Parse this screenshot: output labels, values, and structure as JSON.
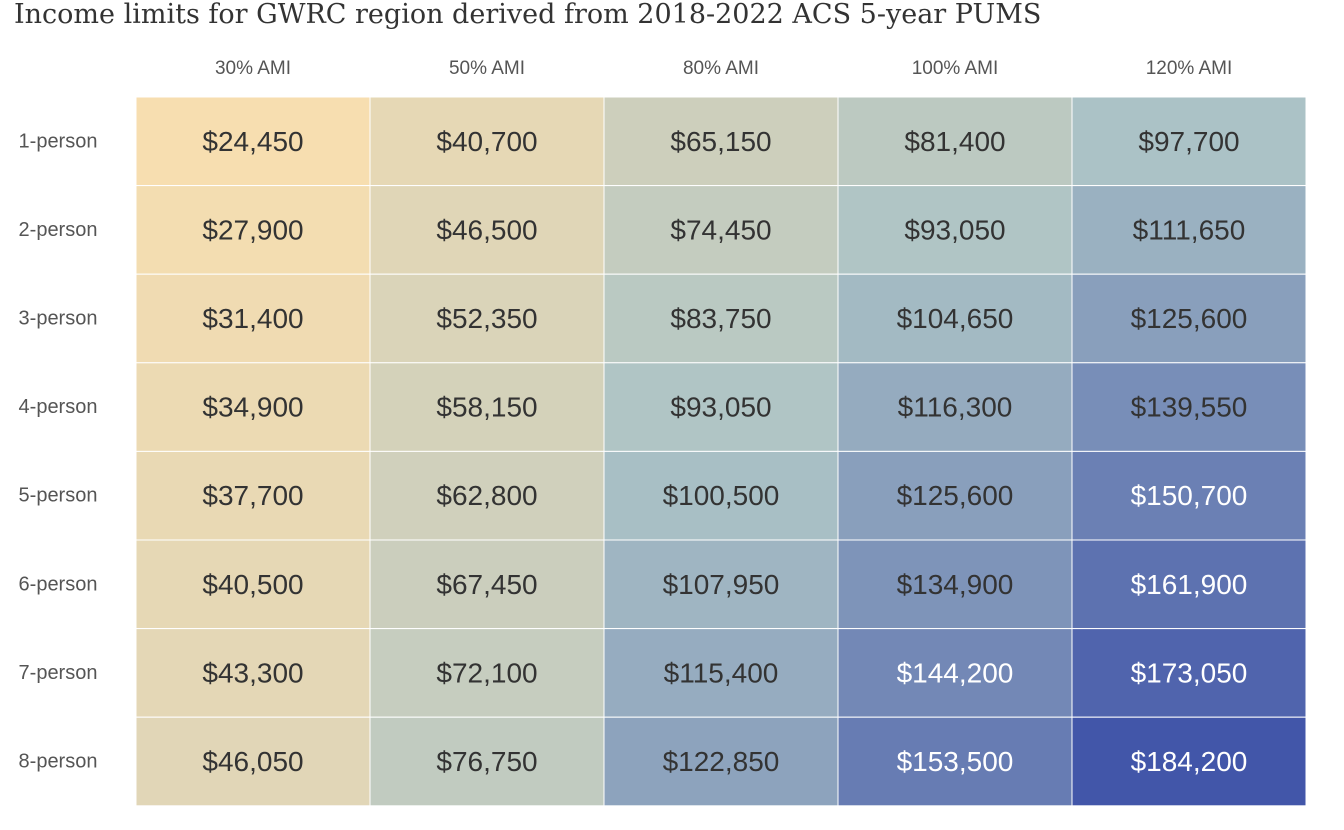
{
  "chart_data": {
    "type": "heatmap",
    "title": "Income limits for GWRC region derived from 2018-2022 ACS 5-year PUMS",
    "columns": [
      "30% AMI",
      "50% AMI",
      "80% AMI",
      "100% AMI",
      "120% AMI"
    ],
    "rows": [
      "1-person",
      "2-person",
      "3-person",
      "4-person",
      "5-person",
      "6-person",
      "7-person",
      "8-person"
    ],
    "values": [
      [
        24450,
        40700,
        65150,
        81400,
        97700
      ],
      [
        27900,
        46500,
        74450,
        93050,
        111650
      ],
      [
        31400,
        52350,
        83750,
        104650,
        125600
      ],
      [
        34900,
        58150,
        93050,
        116300,
        139550
      ],
      [
        37700,
        62800,
        100500,
        125600,
        150700
      ],
      [
        40500,
        67450,
        107950,
        134900,
        161900
      ],
      [
        43300,
        72100,
        115400,
        144200,
        173050
      ],
      [
        46050,
        76750,
        122850,
        153500,
        184200
      ]
    ],
    "value_labels": [
      [
        "$24,450",
        "$40,700",
        "$65,150",
        "$81,400",
        "$97,700"
      ],
      [
        "$27,900",
        "$46,500",
        "$74,450",
        "$93,050",
        "$111,650"
      ],
      [
        "$31,400",
        "$52,350",
        "$83,750",
        "$104,650",
        "$125,600"
      ],
      [
        "$34,900",
        "$58,150",
        "$93,050",
        "$116,300",
        "$139,550"
      ],
      [
        "$37,700",
        "$62,800",
        "$100,500",
        "$125,600",
        "$150,700"
      ],
      [
        "$40,500",
        "$67,450",
        "$107,950",
        "$134,900",
        "$161,900"
      ],
      [
        "$43,300",
        "$72,100",
        "$115,400",
        "$144,200",
        "$173,050"
      ],
      [
        "$46,050",
        "$76,750",
        "$122,850",
        "$153,500",
        "$184,200"
      ]
    ],
    "color_scale": {
      "low_color": "#f7deb0",
      "mid_color": "#adc4c6",
      "high_color": "#4256a9",
      "min": 24450,
      "max": 184200
    },
    "text_colors": {
      "dark": "#333333",
      "light": "#ffffff"
    },
    "light_text_threshold": 140000
  }
}
